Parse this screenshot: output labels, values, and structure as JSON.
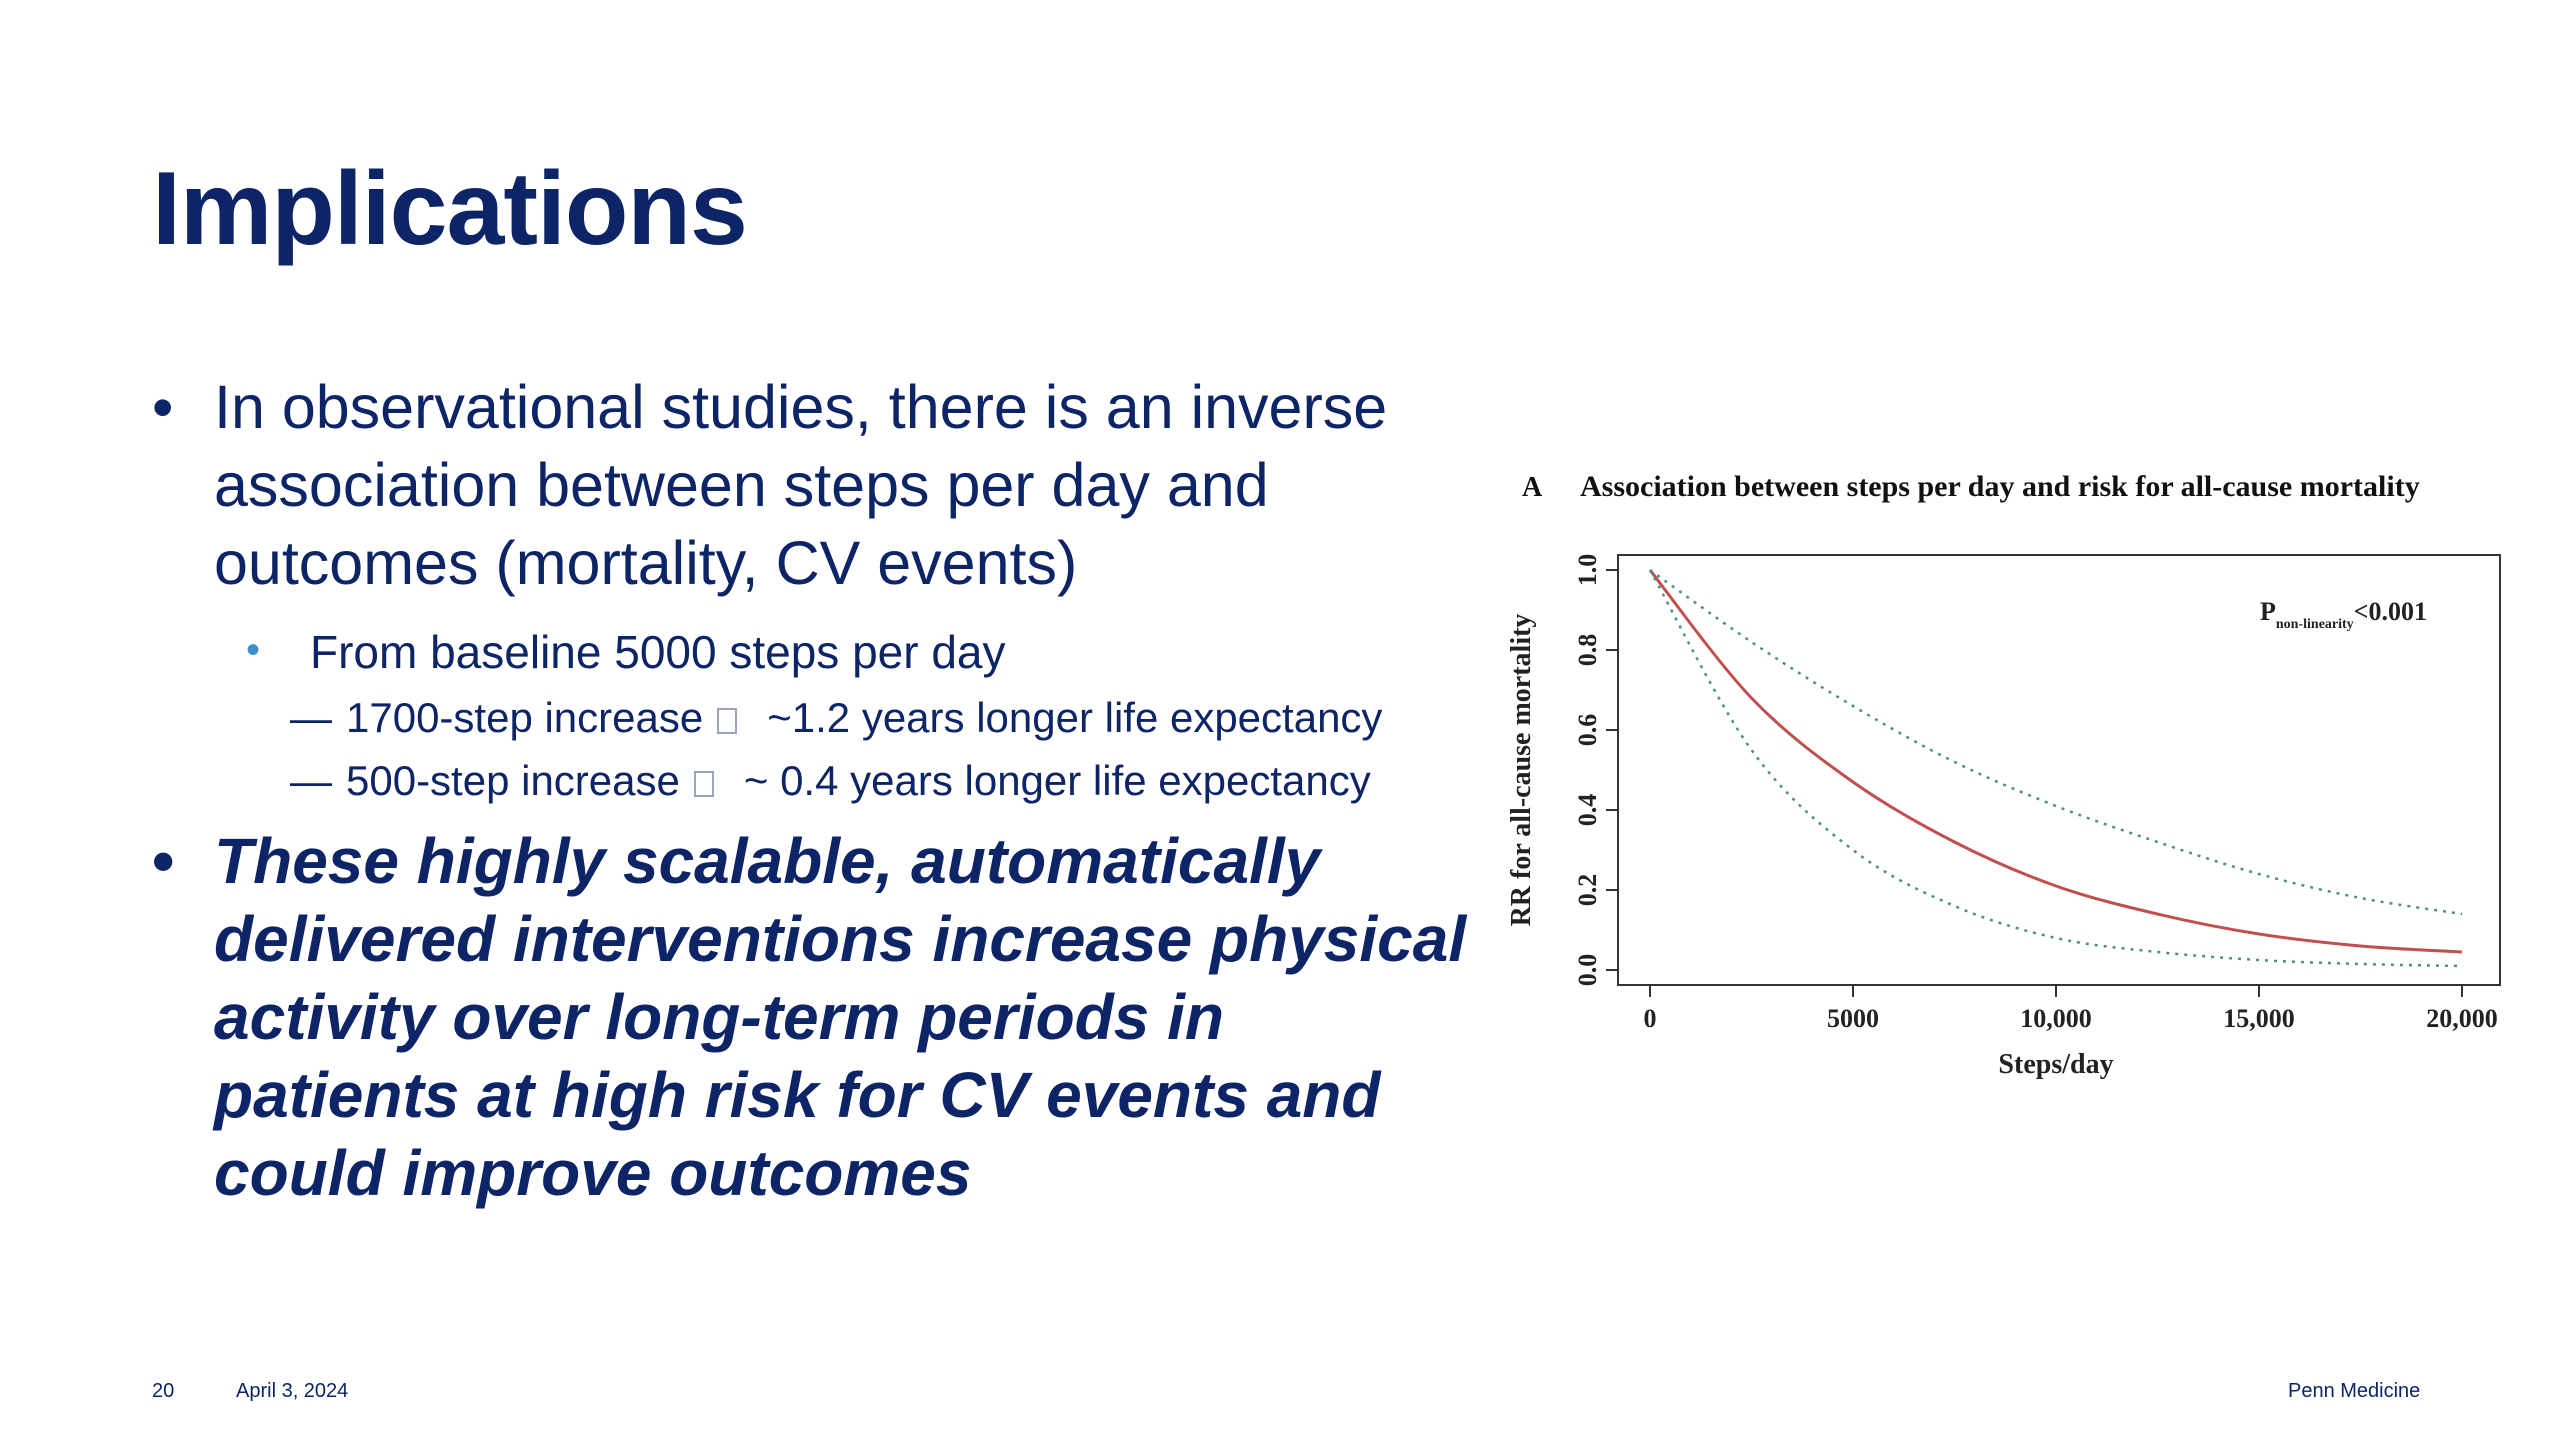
{
  "slide": {
    "title": "Implications",
    "bullet1": "In observational studies, there is an inverse association between steps per day and outcomes (mortality, CV events)",
    "bullet_glyph": "•",
    "sub_bullet": "From baseline 5000 steps per day",
    "dash_glyph": "—",
    "dash_items": [
      {
        "left": "1700-step increase",
        "right": "~1.2 years longer life expectancy"
      },
      {
        "left": "500-step increase",
        "right": "~ 0.4 years longer life expectancy"
      }
    ],
    "bullet2": "These highly scalable, automatically delivered interventions increase physical activity over long-term periods in patients at high risk for CV events and could improve outcomes"
  },
  "footer": {
    "page_number": "20",
    "date": "April 3, 2024",
    "org": "Penn Medicine"
  },
  "chart_data": {
    "type": "line",
    "panel_label": "A",
    "title": "Association between steps per day and risk for all-cause mortality",
    "xlabel": "Steps/day",
    "ylabel": "RR for all-cause mortality",
    "xlim": [
      0,
      20000
    ],
    "ylim": [
      0,
      1.0
    ],
    "x_ticks": [
      0,
      5000,
      10000,
      15000,
      20000
    ],
    "x_tick_labels": [
      "0",
      "5000",
      "10,000",
      "15,000",
      "20,000"
    ],
    "y_ticks": [
      0.0,
      0.2,
      0.4,
      0.6,
      0.8,
      1.0
    ],
    "y_tick_labels": [
      "0.0",
      "0.2",
      "0.4",
      "0.6",
      "0.8",
      "1.0"
    ],
    "annotation": {
      "p_main": "P",
      "p_sub": "non-linearity",
      "p_value": "<0.001"
    },
    "x": [
      0,
      2500,
      5000,
      7500,
      10000,
      12500,
      15000,
      17500,
      20000
    ],
    "series": [
      {
        "style": "solid",
        "color": "#c0504d",
        "values": [
          1.0,
          0.68,
          0.47,
          0.32,
          0.21,
          0.14,
          0.09,
          0.06,
          0.045
        ]
      },
      {
        "style": "dotted-upper",
        "color": "#4f8f86",
        "values": [
          1.0,
          0.82,
          0.66,
          0.52,
          0.41,
          0.32,
          0.24,
          0.18,
          0.14
        ]
      },
      {
        "style": "dotted-lower",
        "color": "#4f8f86",
        "values": [
          1.0,
          0.55,
          0.3,
          0.16,
          0.08,
          0.045,
          0.025,
          0.015,
          0.01
        ]
      }
    ],
    "grid": false,
    "legend": "none"
  }
}
